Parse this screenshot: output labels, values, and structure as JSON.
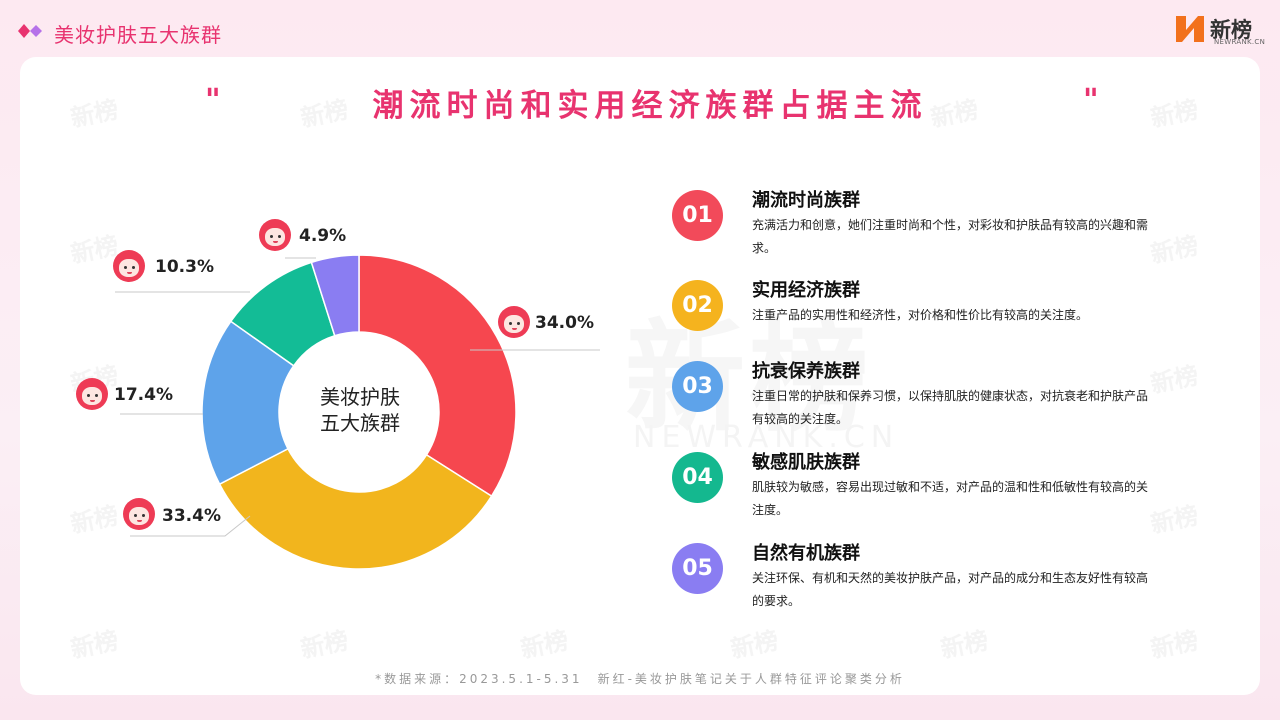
{
  "header": {
    "title": "美妆护肤五大族群"
  },
  "logo": {
    "text": "新榜",
    "sub": "NEWRANK.CN"
  },
  "main_title": "潮流时尚和实用经济族群占据主流",
  "quote_mark": "\"",
  "watermark": {
    "text": "新榜",
    "sub": "NEWRANK.CN"
  },
  "colors": {
    "accent": "#e8336f"
  },
  "chart_data": {
    "type": "pie",
    "center_label": [
      "美妆护肤",
      "五大族群"
    ],
    "slices": [
      {
        "label": "34.0%",
        "value": 34.0,
        "color": "#f6474f"
      },
      {
        "label": "33.4%",
        "value": 33.4,
        "color": "#f2b51d"
      },
      {
        "label": "17.4%",
        "value": 17.4,
        "color": "#5ea3ea"
      },
      {
        "label": "10.3%",
        "value": 10.3,
        "color": "#13bc96"
      },
      {
        "label": "4.9%",
        "value": 4.9,
        "color": "#8a7df2"
      }
    ]
  },
  "items": [
    {
      "num": "01",
      "title": "潮流时尚族群",
      "desc": "充满活力和创意，她们注重时尚和个性，对彩妆和护肤品有较高的兴趣和需求。",
      "color": "#f24a5a"
    },
    {
      "num": "02",
      "title": "实用经济族群",
      "desc": "注重产品的实用性和经济性，对价格和性价比有较高的关注度。",
      "color": "#f5b31e"
    },
    {
      "num": "03",
      "title": "抗衰保养族群",
      "desc": "注重日常的护肤和保养习惯，以保持肌肤的健康状态，对抗衰老和护肤产品有较高的关注度。",
      "color": "#5ea3ea"
    },
    {
      "num": "04",
      "title": "敏感肌肤族群",
      "desc": "肌肤较为敏感，容易出现过敏和不适，对产品的温和性和低敏性有较高的关注度。",
      "color": "#14b88f"
    },
    {
      "num": "05",
      "title": "自然有机族群",
      "desc": "关注环保、有机和天然的美妆护肤产品，对产品的成分和生态友好性有较高的要求。",
      "color": "#8a7df2"
    }
  ],
  "footer": "*数据来源：2023.5.1-5.31　新红-美妆护肤笔记关于人群特征评论聚类分析"
}
